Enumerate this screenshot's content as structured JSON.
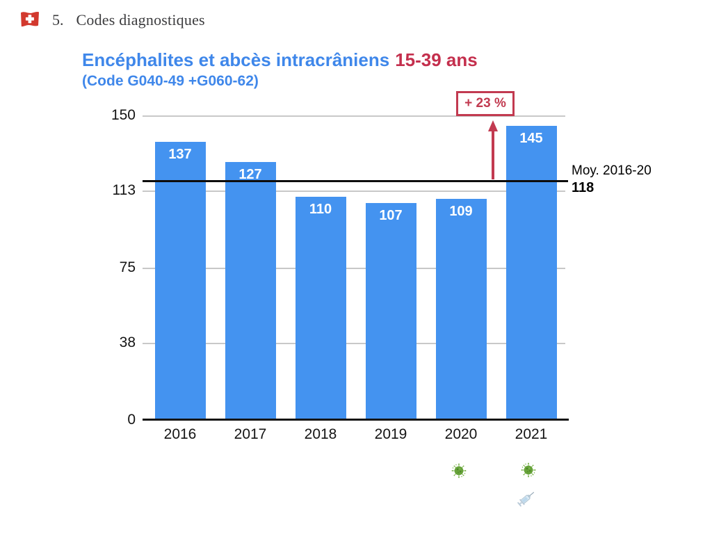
{
  "header": {
    "section_number": "5.",
    "section_title": "Codes diagnostiques"
  },
  "title": {
    "main": "Encéphalites et abcès intracrâniens",
    "age_range": "15-39 ans",
    "subtitle": "(Code G040-49 +G060-62)"
  },
  "chart_data": {
    "type": "bar",
    "title": "Encéphalites et abcès intracrâniens 15-39 ans",
    "subtitle": "(Code G040-49 +G060-62)",
    "categories": [
      "2016",
      "2017",
      "2018",
      "2019",
      "2020",
      "2021"
    ],
    "values": [
      137,
      127,
      110,
      107,
      109,
      145
    ],
    "xlabel": "",
    "ylabel": "",
    "ylim": [
      0,
      150
    ],
    "yticks": [
      0,
      38,
      75,
      113,
      150
    ],
    "grid": true,
    "legend_position": "none",
    "bar_color": "#4493F0",
    "reference_line": {
      "value": 118,
      "label": "Moy. 2016-20",
      "value_label": "118",
      "color": "#0d0d0d"
    },
    "annotation": {
      "label": "+ 23 %",
      "percent_change": 23,
      "applies_to": "2021",
      "color": "#C23A50"
    },
    "category_markers": {
      "2020": [
        "microbe"
      ],
      "2021": [
        "microbe",
        "syringe"
      ]
    }
  },
  "colors": {
    "title_blue": "#3F87EA",
    "title_red": "#C42F4D",
    "bar_blue": "#4493F0",
    "annotation_red": "#C23A50",
    "grid_gray": "#C8C8C8",
    "header_text": "#3C3C3E"
  },
  "icons": {
    "header_flag": "swiss-flag-icon",
    "covid_marker": "microbe-icon",
    "vaccine_marker": "syringe-icon",
    "trend_arrow": "arrow-up-icon"
  }
}
